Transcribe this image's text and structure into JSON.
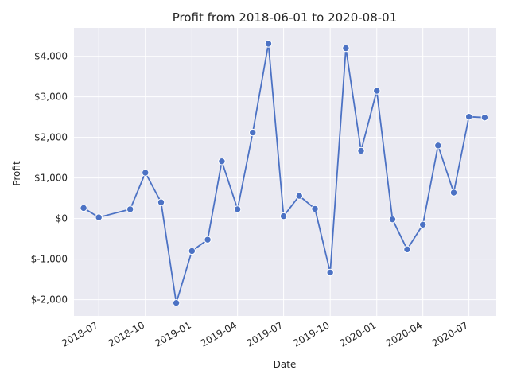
{
  "chart_data": {
    "type": "line",
    "title": "Profit from 2018-06-01 to 2020-08-01",
    "xlabel": "Date",
    "ylabel": "Profit",
    "ylim": [
      -2400,
      4700
    ],
    "xlim": [
      "2018-05-13",
      "2020-08-24"
    ],
    "grid": true,
    "y_ticks": [
      {
        "value": -2000,
        "label": "$-2,000"
      },
      {
        "value": -1000,
        "label": "$-1,000"
      },
      {
        "value": 0,
        "label": "$0"
      },
      {
        "value": 1000,
        "label": "$1,000"
      },
      {
        "value": 2000,
        "label": "$2,000"
      },
      {
        "value": 3000,
        "label": "$3,000"
      },
      {
        "value": 4000,
        "label": "$4,000"
      }
    ],
    "x_ticks": [
      {
        "value": "2018-07-01",
        "label": "2018-07"
      },
      {
        "value": "2018-10-01",
        "label": "2018-10"
      },
      {
        "value": "2019-01-01",
        "label": "2019-01"
      },
      {
        "value": "2019-04-01",
        "label": "2019-04"
      },
      {
        "value": "2019-07-01",
        "label": "2019-07"
      },
      {
        "value": "2019-10-01",
        "label": "2019-10"
      },
      {
        "value": "2020-01-01",
        "label": "2020-01"
      },
      {
        "value": "2020-04-01",
        "label": "2020-04"
      },
      {
        "value": "2020-07-01",
        "label": "2020-07"
      }
    ],
    "series": [
      {
        "color": "#4c72c4",
        "points": [
          {
            "x": "2018-06-01",
            "y": 260
          },
          {
            "x": "2018-07-01",
            "y": 30
          },
          {
            "x": "2018-09-01",
            "y": 230
          },
          {
            "x": "2018-10-01",
            "y": 1130
          },
          {
            "x": "2018-11-01",
            "y": 400
          },
          {
            "x": "2018-12-01",
            "y": -2080
          },
          {
            "x": "2019-01-01",
            "y": -800
          },
          {
            "x": "2019-02-01",
            "y": -520
          },
          {
            "x": "2019-03-01",
            "y": 1410
          },
          {
            "x": "2019-04-01",
            "y": 230
          },
          {
            "x": "2019-05-01",
            "y": 2120
          },
          {
            "x": "2019-06-01",
            "y": 4310
          },
          {
            "x": "2019-07-01",
            "y": 60
          },
          {
            "x": "2019-08-01",
            "y": 560
          },
          {
            "x": "2019-09-01",
            "y": 240
          },
          {
            "x": "2019-10-01",
            "y": -1330
          },
          {
            "x": "2019-11-01",
            "y": 4200
          },
          {
            "x": "2019-12-01",
            "y": 1670
          },
          {
            "x": "2020-01-01",
            "y": 3150
          },
          {
            "x": "2020-02-01",
            "y": -20
          },
          {
            "x": "2020-03-01",
            "y": -760
          },
          {
            "x": "2020-04-01",
            "y": -150
          },
          {
            "x": "2020-05-01",
            "y": 1800
          },
          {
            "x": "2020-06-01",
            "y": 640
          },
          {
            "x": "2020-07-01",
            "y": 2510
          },
          {
            "x": "2020-08-01",
            "y": 2490
          }
        ]
      }
    ]
  },
  "colors": {
    "plot_background": "#eaeaf2",
    "series": "#4c72c4",
    "grid": "#ffffff",
    "text": "#262626"
  }
}
